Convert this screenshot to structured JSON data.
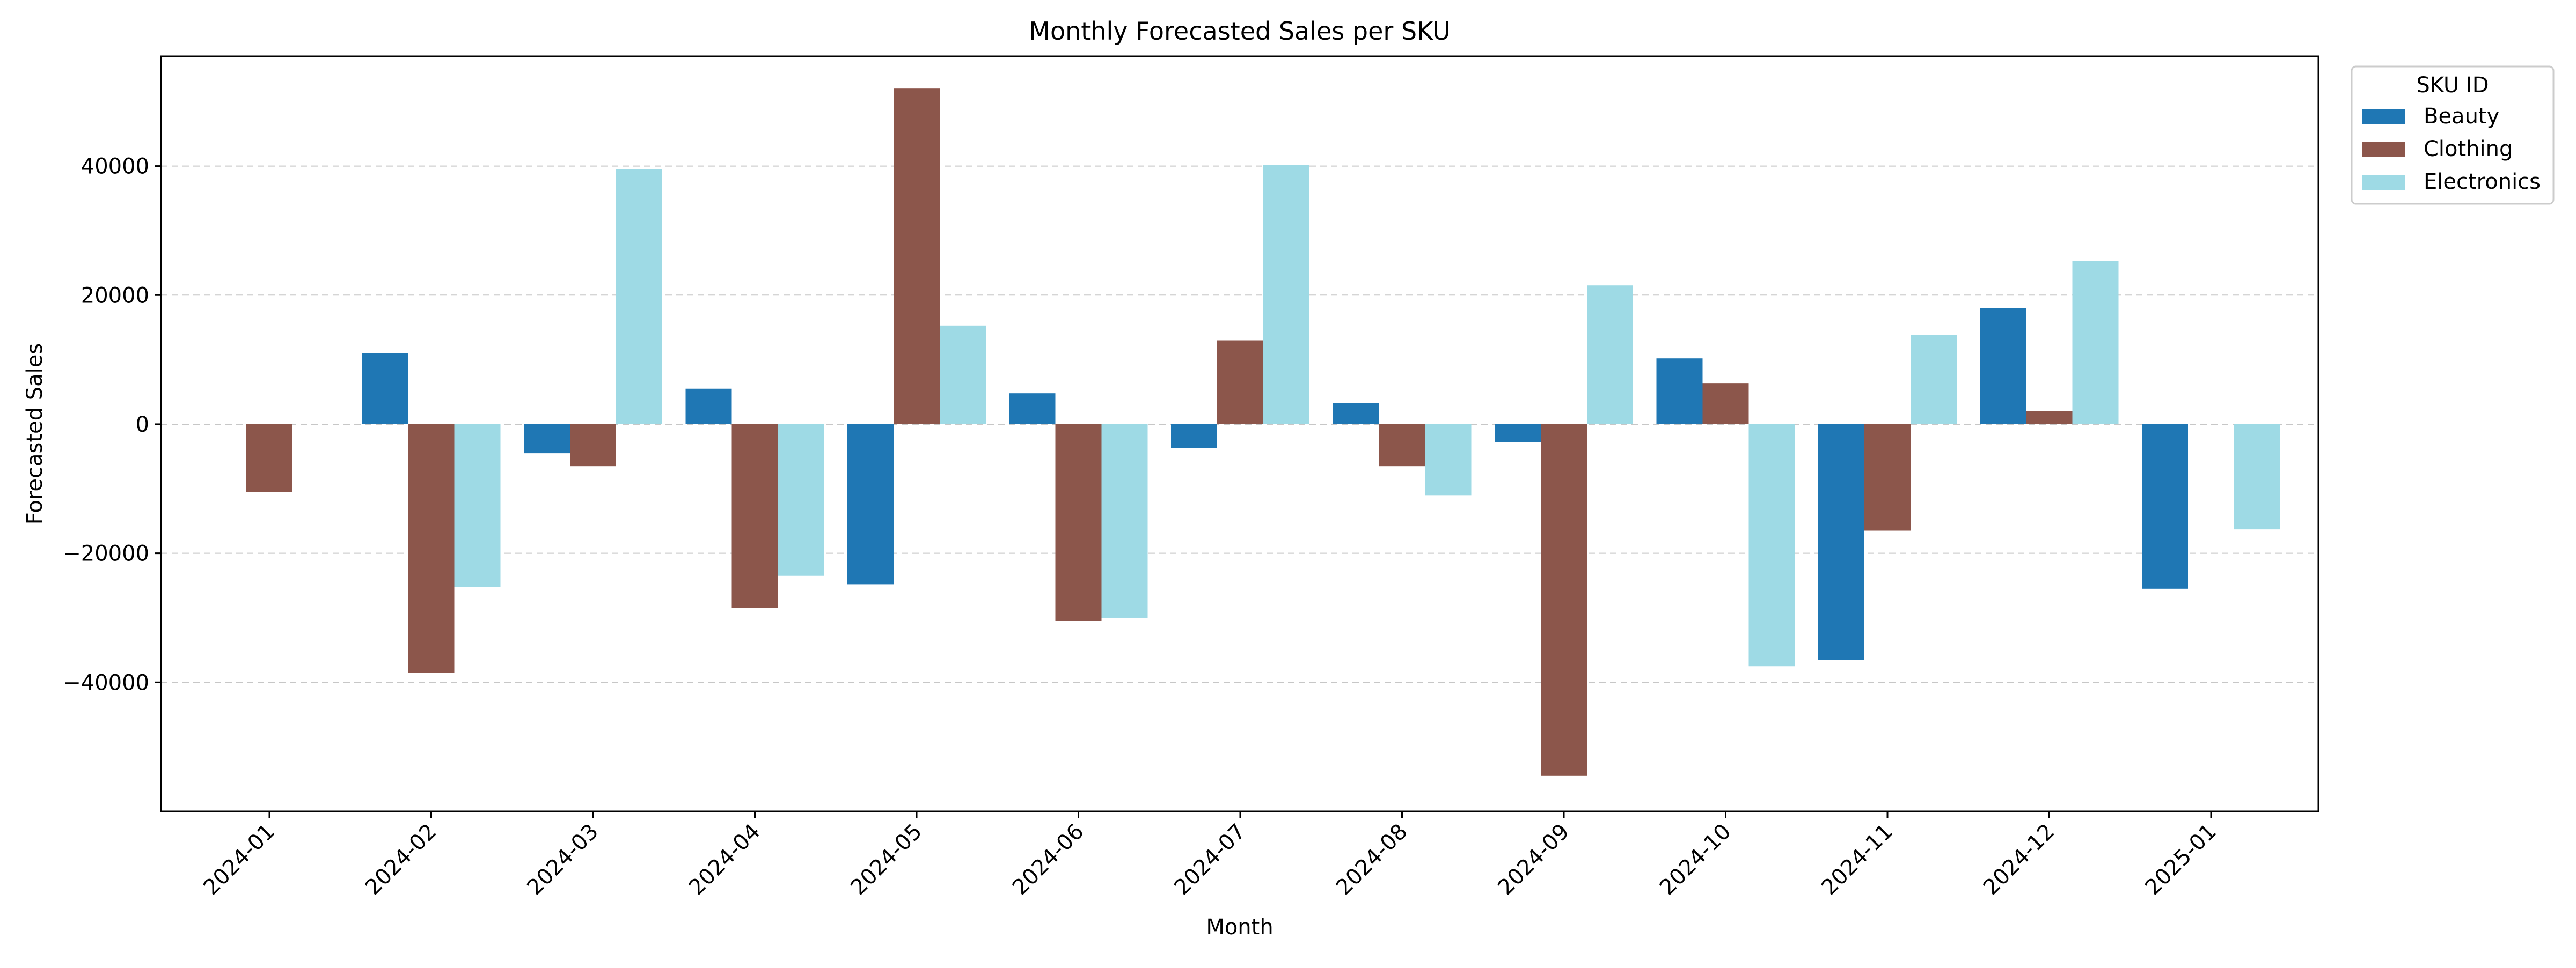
{
  "chart_data": {
    "type": "bar",
    "title": "Monthly Forecasted Sales per SKU",
    "xlabel": "Month",
    "ylabel": "Forecasted Sales",
    "categories": [
      "2024-01",
      "2024-02",
      "2024-03",
      "2024-04",
      "2024-05",
      "2024-06",
      "2024-07",
      "2024-08",
      "2024-09",
      "2024-10",
      "2024-11",
      "2024-12",
      "2025-01"
    ],
    "ylim": [
      -60000,
      57000
    ],
    "yticks": [
      -40000,
      -20000,
      0,
      20000,
      40000
    ],
    "ytick_labels": [
      "−40000",
      "−20000",
      "0",
      "20000",
      "40000"
    ],
    "grid": "y-dashed",
    "legend": {
      "title": "SKU ID",
      "placement": "outside-top-right"
    },
    "series": [
      {
        "name": "Beauty",
        "color": "#1f77b4",
        "values": [
          null,
          11000,
          -4500,
          5500,
          -24800,
          4800,
          -3700,
          3300,
          -2800,
          10200,
          -36500,
          18000,
          -25500
        ]
      },
      {
        "name": "Clothing",
        "color": "#8c564b",
        "values": [
          -10500,
          -38500,
          -6500,
          -28500,
          52000,
          -30500,
          13000,
          -6500,
          -54500,
          6300,
          -16500,
          2000,
          null
        ]
      },
      {
        "name": "Electronics",
        "color": "#9edae5",
        "values": [
          null,
          -25200,
          39500,
          -23500,
          15300,
          -30000,
          40200,
          -11000,
          21500,
          -37500,
          13800,
          25300,
          -16300
        ]
      }
    ]
  }
}
